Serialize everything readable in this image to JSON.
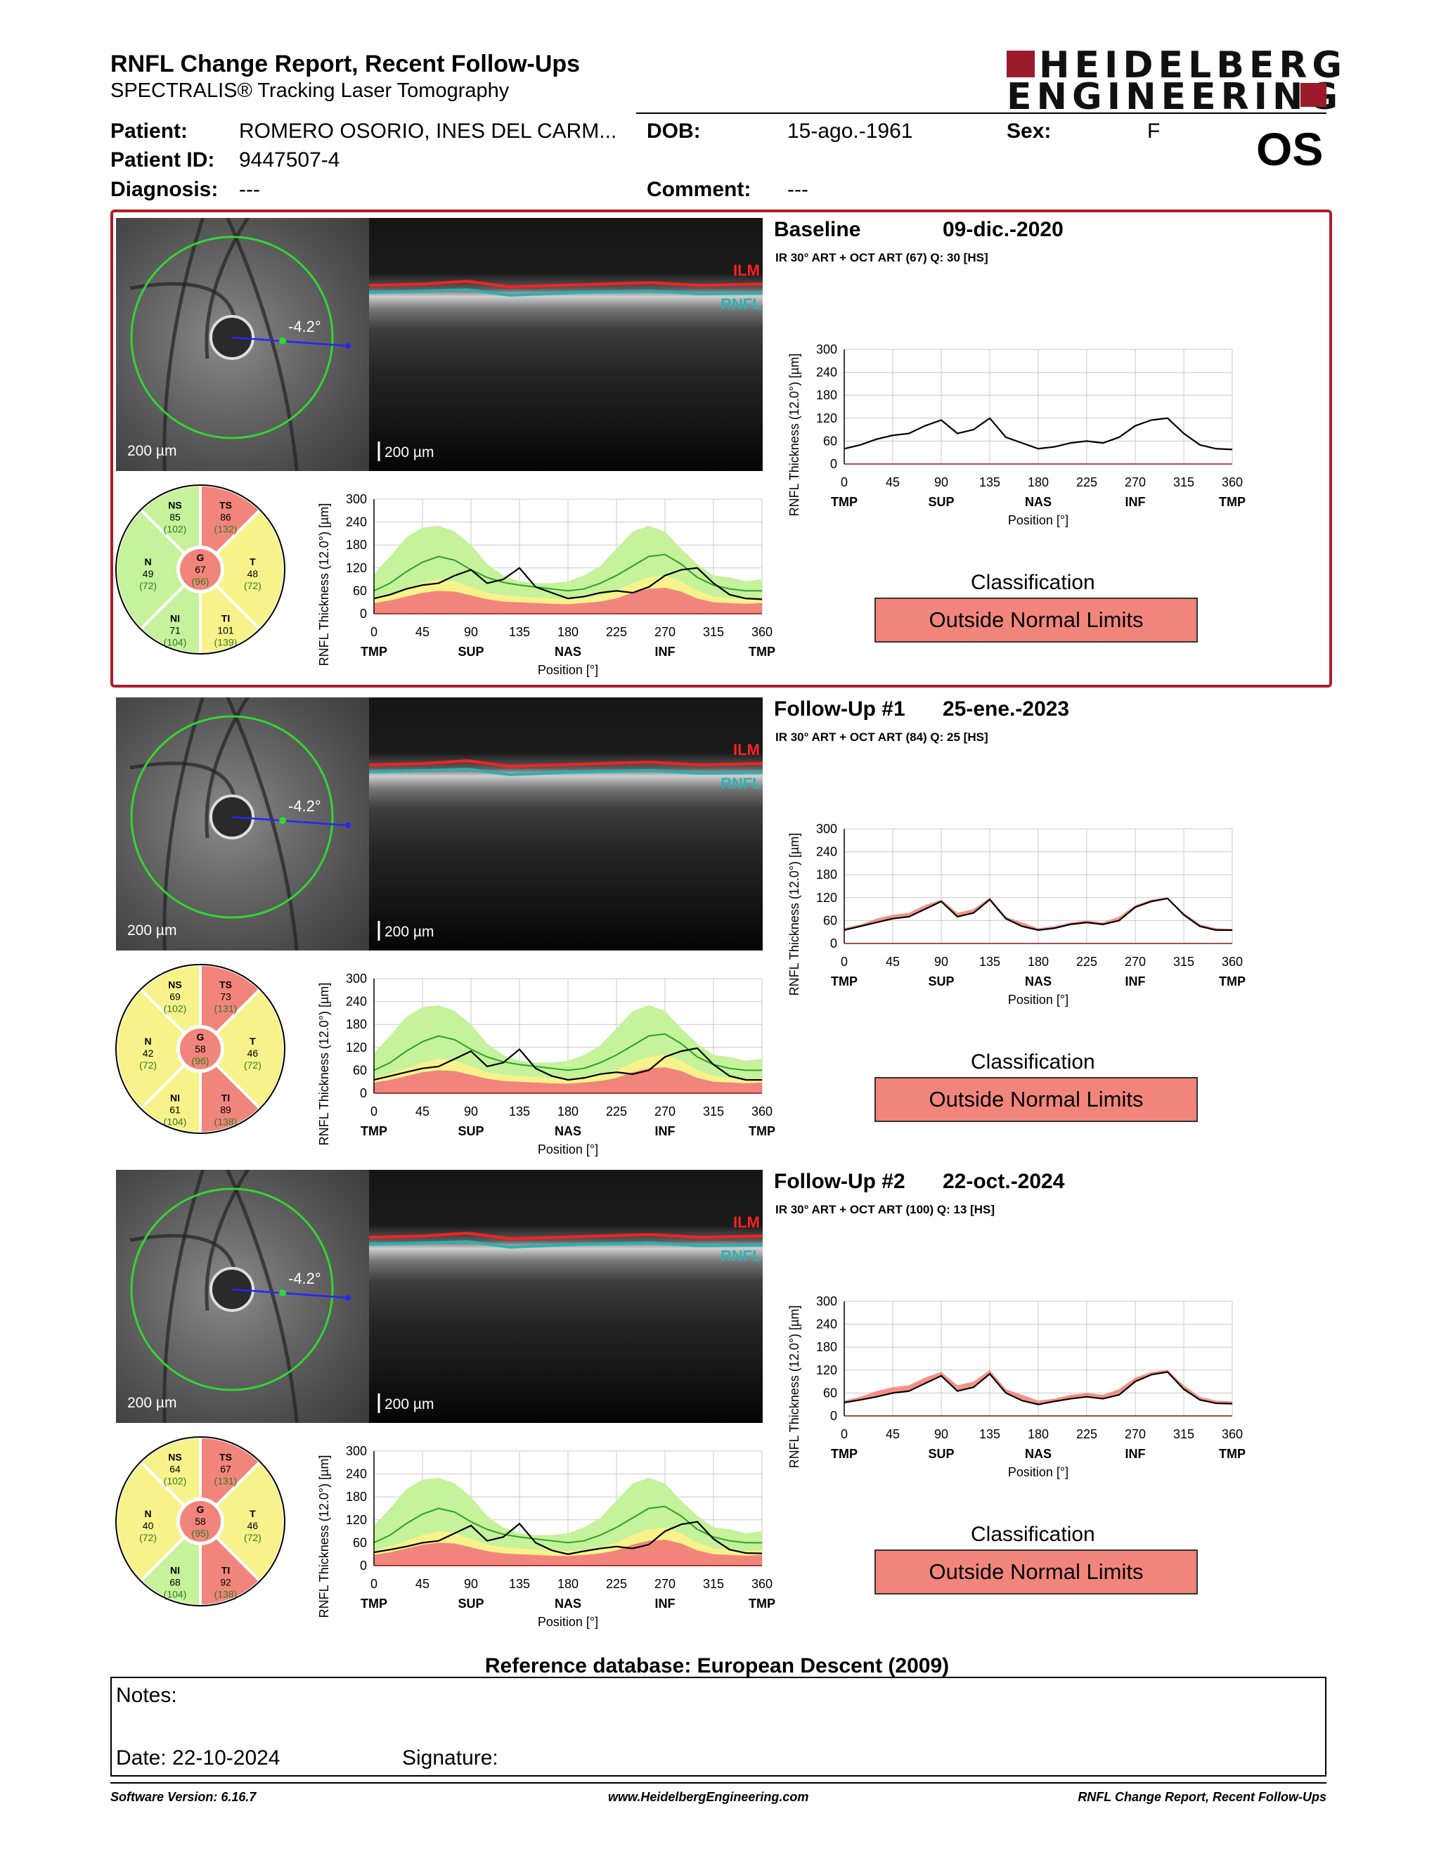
{
  "header": {
    "title": "RNFL Change Report, Recent Follow-Ups",
    "subtitle": "SPECTRALIS® Tracking Laser Tomography",
    "logo_line1": "HEIDELBERG",
    "logo_line2": "ENGINEERING",
    "eye": "OS"
  },
  "patient": {
    "name_label": "Patient:",
    "name": "ROMERO OSORIO, INES DEL CARM...",
    "id_label": "Patient ID:",
    "id": "9447507-4",
    "dob_label": "DOB:",
    "dob": "15-ago.-1961",
    "sex_label": "Sex:",
    "sex": "F",
    "diagnosis_label": "Diagnosis:",
    "diagnosis": "---",
    "comment_label": "Comment:",
    "comment": "---"
  },
  "labels": {
    "ilm": "ILM",
    "rnfl": "RNFL",
    "angle": "-4.2°",
    "scale": "200 µm",
    "ylabel": "RNFL Thickness (12.0°) [µm]",
    "xlabel": "Position [°]",
    "classification": "Classification"
  },
  "colors": {
    "outside": "#f2857b",
    "borderline": "#f7f38a",
    "normal": "#c5f29a",
    "frame": "#b11b27"
  },
  "chart_axes": {
    "yticks": [
      0,
      60,
      120,
      180,
      240,
      300
    ],
    "xticks": [
      0,
      45,
      90,
      135,
      180,
      225,
      270,
      315,
      360
    ],
    "xcats": [
      {
        "label": "TMP",
        "at": 0
      },
      {
        "label": "SUP",
        "at": 90
      },
      {
        "label": "NAS",
        "at": 180
      },
      {
        "label": "INF",
        "at": 270
      },
      {
        "label": "TMP",
        "at": 360
      }
    ]
  },
  "visits": [
    {
      "title": "Baseline",
      "date": "09-dic.-2020",
      "info": "IR 30° ART + OCT ART (67) Q: 30 [HS]",
      "classification": "Outside Normal Limits",
      "sectors": {
        "NS": {
          "label": "NS",
          "value": "85",
          "ref": "(102)",
          "cls": "normal"
        },
        "TS": {
          "label": "TS",
          "value": "86",
          "ref": "(132)",
          "cls": "outside"
        },
        "T": {
          "label": "T",
          "value": "48",
          "ref": "(72)",
          "cls": "borderline"
        },
        "TI": {
          "label": "TI",
          "value": "101",
          "ref": "(139)",
          "cls": "borderline"
        },
        "NI": {
          "label": "NI",
          "value": "71",
          "ref": "(104)",
          "cls": "normal"
        },
        "N": {
          "label": "N",
          "value": "49",
          "ref": "(72)",
          "cls": "normal"
        },
        "G": {
          "label": "G",
          "value": "67",
          "ref": "(96)",
          "cls": "outside"
        }
      }
    },
    {
      "title": "Follow-Up #1",
      "date": "25-ene.-2023",
      "info": "IR 30° ART + OCT ART (84) Q: 25 [HS]",
      "classification": "Outside Normal Limits",
      "sectors": {
        "NS": {
          "label": "NS",
          "value": "69",
          "ref": "(102)",
          "cls": "borderline"
        },
        "TS": {
          "label": "TS",
          "value": "73",
          "ref": "(131)",
          "cls": "outside"
        },
        "T": {
          "label": "T",
          "value": "46",
          "ref": "(72)",
          "cls": "borderline"
        },
        "TI": {
          "label": "TI",
          "value": "89",
          "ref": "(138)",
          "cls": "outside"
        },
        "NI": {
          "label": "NI",
          "value": "61",
          "ref": "(104)",
          "cls": "borderline"
        },
        "N": {
          "label": "N",
          "value": "42",
          "ref": "(72)",
          "cls": "borderline"
        },
        "G": {
          "label": "G",
          "value": "58",
          "ref": "(96)",
          "cls": "outside"
        }
      }
    },
    {
      "title": "Follow-Up #2",
      "date": "22-oct.-2024",
      "info": "IR 30° ART + OCT ART (100) Q: 13 [HS]",
      "classification": "Outside Normal Limits",
      "sectors": {
        "NS": {
          "label": "NS",
          "value": "64",
          "ref": "(102)",
          "cls": "borderline"
        },
        "TS": {
          "label": "TS",
          "value": "67",
          "ref": "(131)",
          "cls": "outside"
        },
        "T": {
          "label": "T",
          "value": "46",
          "ref": "(72)",
          "cls": "borderline"
        },
        "TI": {
          "label": "TI",
          "value": "92",
          "ref": "(138)",
          "cls": "outside"
        },
        "NI": {
          "label": "NI",
          "value": "68",
          "ref": "(104)",
          "cls": "normal"
        },
        "N": {
          "label": "N",
          "value": "40",
          "ref": "(72)",
          "cls": "borderline"
        },
        "G": {
          "label": "G",
          "value": "58",
          "ref": "(95)",
          "cls": "outside"
        }
      }
    }
  ],
  "chart_data": {
    "type": "line",
    "x": [
      0,
      15,
      30,
      45,
      60,
      75,
      90,
      105,
      120,
      135,
      150,
      165,
      180,
      195,
      210,
      225,
      240,
      255,
      270,
      285,
      300,
      315,
      330,
      345,
      360
    ],
    "normal_band": {
      "upper": [
        105,
        150,
        200,
        225,
        230,
        215,
        180,
        130,
        100,
        85,
        80,
        80,
        85,
        100,
        125,
        170,
        215,
        230,
        215,
        170,
        130,
        100,
        95,
        85,
        90
      ],
      "mean": [
        60,
        80,
        110,
        135,
        150,
        140,
        115,
        95,
        82,
        75,
        70,
        65,
        60,
        65,
        80,
        100,
        125,
        150,
        155,
        130,
        95,
        75,
        65,
        60,
        60
      ],
      "lower_normal": [
        40,
        50,
        65,
        80,
        90,
        85,
        70,
        55,
        48,
        45,
        42,
        40,
        38,
        40,
        48,
        60,
        80,
        95,
        100,
        85,
        60,
        45,
        40,
        38,
        40
      ],
      "lower_borderline": [
        28,
        35,
        45,
        55,
        60,
        58,
        48,
        38,
        32,
        30,
        28,
        26,
        25,
        28,
        32,
        40,
        55,
        65,
        68,
        58,
        40,
        30,
        28,
        26,
        28
      ]
    },
    "series": [
      {
        "name": "Baseline",
        "values": [
          40,
          50,
          65,
          75,
          80,
          100,
          115,
          80,
          90,
          120,
          70,
          55,
          40,
          45,
          55,
          60,
          55,
          70,
          100,
          115,
          120,
          80,
          50,
          40,
          38
        ]
      },
      {
        "name": "Follow-Up #1",
        "values": [
          35,
          45,
          55,
          65,
          70,
          90,
          110,
          70,
          80,
          115,
          65,
          45,
          35,
          40,
          50,
          55,
          50,
          60,
          95,
          110,
          118,
          75,
          45,
          35,
          35
        ]
      },
      {
        "name": "Follow-Up #2",
        "values": [
          35,
          42,
          50,
          60,
          65,
          85,
          105,
          65,
          75,
          110,
          60,
          40,
          30,
          38,
          45,
          50,
          45,
          55,
          90,
          108,
          115,
          70,
          42,
          33,
          32
        ]
      }
    ],
    "ylim": [
      0,
      300
    ],
    "xlim": [
      0,
      360
    ],
    "xlabel": "Position [°]",
    "ylabel": "RNFL Thickness (12.0°) [µm]"
  },
  "reference_db": "Reference database: European Descent (2009)",
  "notes": {
    "notes_label": "Notes:",
    "date_label": "Date: 22-10-2024",
    "signature_label": "Signature:"
  },
  "footer": {
    "software": "Software Version: 6.16.7",
    "website": "www.HeidelbergEngineering.com",
    "report": "RNFL Change Report, Recent Follow-Ups"
  }
}
